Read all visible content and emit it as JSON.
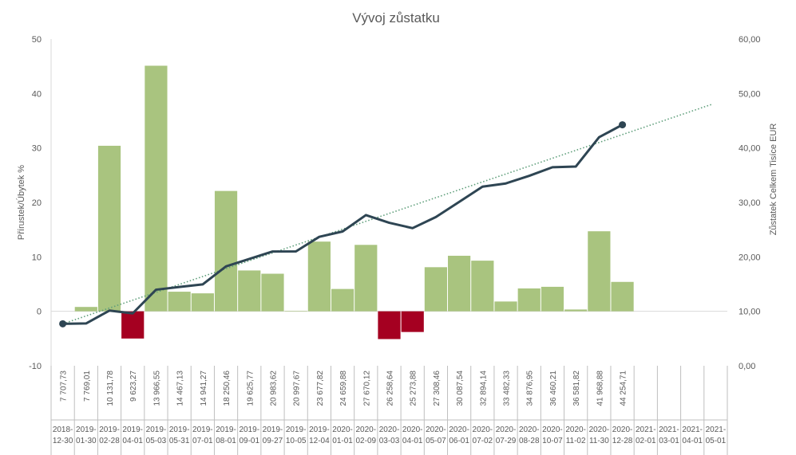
{
  "chart_data": {
    "type": "bar+line",
    "title": "Vývoj zůstatku",
    "ylabel_left": "Přírustek/Úbytek %",
    "ylabel_right": "Zůstatek Celkem Tisíce EUR",
    "ylim_left": [
      -10,
      50
    ],
    "ylim_right": [
      0,
      60
    ],
    "yticks_left": [
      "-10",
      "0",
      "10",
      "20",
      "30",
      "40",
      "50"
    ],
    "yticks_right": [
      "0,00",
      "10,00",
      "20,00",
      "30,00",
      "40,00",
      "50,00",
      "60,00"
    ],
    "grid": false,
    "legend": "none",
    "colors": {
      "positive_bar": "#a9c47f",
      "negative_bar": "#a50021",
      "line": "#2e4553",
      "trend": "#5e9e7a"
    },
    "dates": [
      [
        "2018-",
        "12-30"
      ],
      [
        "2019-",
        "01-30"
      ],
      [
        "2019-",
        "02-28"
      ],
      [
        "2019-",
        "04-01"
      ],
      [
        "2019-",
        "05-03"
      ],
      [
        "2019-",
        "05-31"
      ],
      [
        "2019-",
        "07-01"
      ],
      [
        "2019-",
        "08-01"
      ],
      [
        "2019-",
        "09-01"
      ],
      [
        "2019-",
        "09-27"
      ],
      [
        "2019-",
        "10-05"
      ],
      [
        "2019-",
        "12-04"
      ],
      [
        "2020-",
        "01-01"
      ],
      [
        "2020-",
        "02-09"
      ],
      [
        "2020-",
        "03-03"
      ],
      [
        "2020-",
        "04-01"
      ],
      [
        "2020-",
        "05-07"
      ],
      [
        "2020-",
        "06-01"
      ],
      [
        "2020-",
        "07-02"
      ],
      [
        "2020-",
        "07-29"
      ],
      [
        "2020-",
        "08-28"
      ],
      [
        "2020-",
        "10-07"
      ],
      [
        "2020-",
        "11-02"
      ],
      [
        "2020-",
        "11-30"
      ],
      [
        "2020-",
        "12-28"
      ],
      [
        "2021-",
        "02-01"
      ],
      [
        "2021-",
        "03-01"
      ],
      [
        "2021-",
        "04-01"
      ],
      [
        "2021-",
        "05-01"
      ]
    ],
    "balance_labels": [
      "7 707,73",
      "7 769,01",
      "10 131,78",
      "9 623,27",
      "13 966,55",
      "14 467,13",
      "14 941,27",
      "18 250,46",
      "19 625,77",
      "20 983,62",
      "20 997,67",
      "23 677,82",
      "24 659,88",
      "27 670,12",
      "26 258,64",
      "25 273,88",
      "27 308,46",
      "30 087,54",
      "32 894,14",
      "33 482,33",
      "34 876,95",
      "36 460,21",
      "36 581,82",
      "41 968,88",
      "44 254,71",
      "",
      "",
      "",
      ""
    ],
    "balance_values": [
      7.70773,
      7.76901,
      10.13178,
      9.62327,
      13.96655,
      14.46713,
      14.94127,
      18.25046,
      19.62577,
      20.98362,
      20.99767,
      23.67782,
      24.65988,
      27.67012,
      26.25864,
      25.27388,
      27.30846,
      30.08754,
      32.89414,
      33.48233,
      34.87695,
      36.46021,
      36.58182,
      41.96888,
      44.25471
    ],
    "change_percent": [
      null,
      0.8,
      30.4,
      -5.0,
      45.1,
      3.6,
      3.3,
      22.1,
      7.5,
      6.9,
      0.07,
      12.8,
      4.1,
      12.2,
      -5.1,
      -3.8,
      8.1,
      10.2,
      9.3,
      1.8,
      4.2,
      4.5,
      0.33,
      14.7,
      5.4,
      null,
      null,
      null,
      null
    ],
    "trend": {
      "type": "linear",
      "start_value": 7.7,
      "end_value": 48.0
    }
  }
}
